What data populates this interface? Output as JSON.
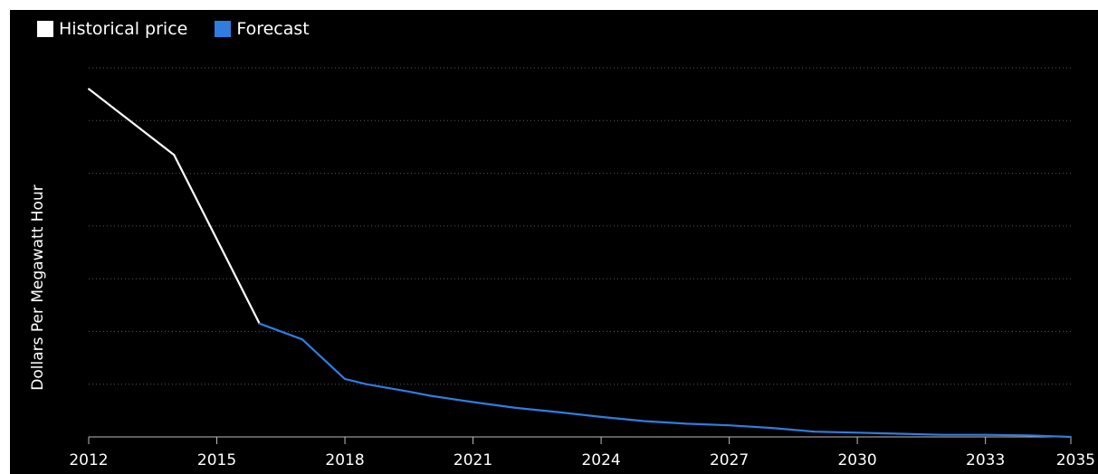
{
  "legend": {
    "items": [
      {
        "label": "Historical price",
        "color": "#ffffff"
      },
      {
        "label": "Forecast",
        "color": "#2f7de1"
      }
    ]
  },
  "chart_data": {
    "type": "line",
    "title": "",
    "xlabel": "",
    "ylabel": "Dollars Per Megawatt Hour",
    "xlim": [
      2012,
      2035
    ],
    "x_ticks": [
      2012,
      2015,
      2018,
      2021,
      2024,
      2027,
      2030,
      2033,
      2035
    ],
    "ylim": [
      0,
      7
    ],
    "grid": "horizontal dotted",
    "legend_position": "top-left",
    "background": "#000000",
    "series": [
      {
        "name": "Historical price",
        "color": "#ffffff",
        "x": [
          2012,
          2014,
          2016
        ],
        "y": [
          6.6,
          5.35,
          2.15
        ]
      },
      {
        "name": "Forecast",
        "color": "#2f7de1",
        "x": [
          2016,
          2017,
          2018,
          2018.5,
          2019.5,
          2020,
          2021,
          2022,
          2023,
          2024,
          2025,
          2026,
          2027,
          2028,
          2029,
          2030,
          2031,
          2032,
          2033,
          2034,
          2035
        ],
        "y": [
          2.15,
          1.85,
          1.1,
          1.0,
          0.86,
          0.78,
          0.66,
          0.55,
          0.47,
          0.38,
          0.3,
          0.25,
          0.22,
          0.17,
          0.1,
          0.08,
          0.06,
          0.04,
          0.04,
          0.03,
          0.0
        ]
      }
    ]
  }
}
